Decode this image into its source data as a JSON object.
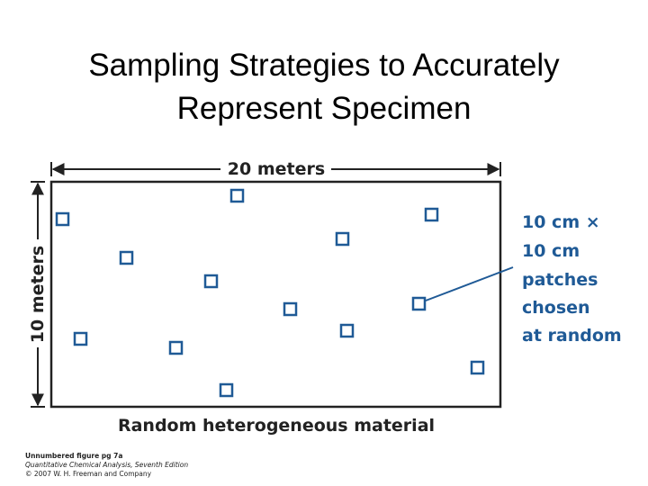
{
  "title": {
    "lines": [
      "Sampling Strategies to Accurately",
      "Represent Specimen"
    ]
  },
  "diagram": {
    "width_label": "20 meters",
    "height_label": "10 meters",
    "annotation": [
      "10 cm ×",
      "10 cm",
      "patches",
      "chosen",
      "at random"
    ],
    "caption": "Random heterogeneous material"
  },
  "credits": [
    "Unnumbered figure pg 7a",
    "Quantitative Chemical Analysis, Seventh Edition",
    "© 2007 W. H. Freeman and Company"
  ]
}
